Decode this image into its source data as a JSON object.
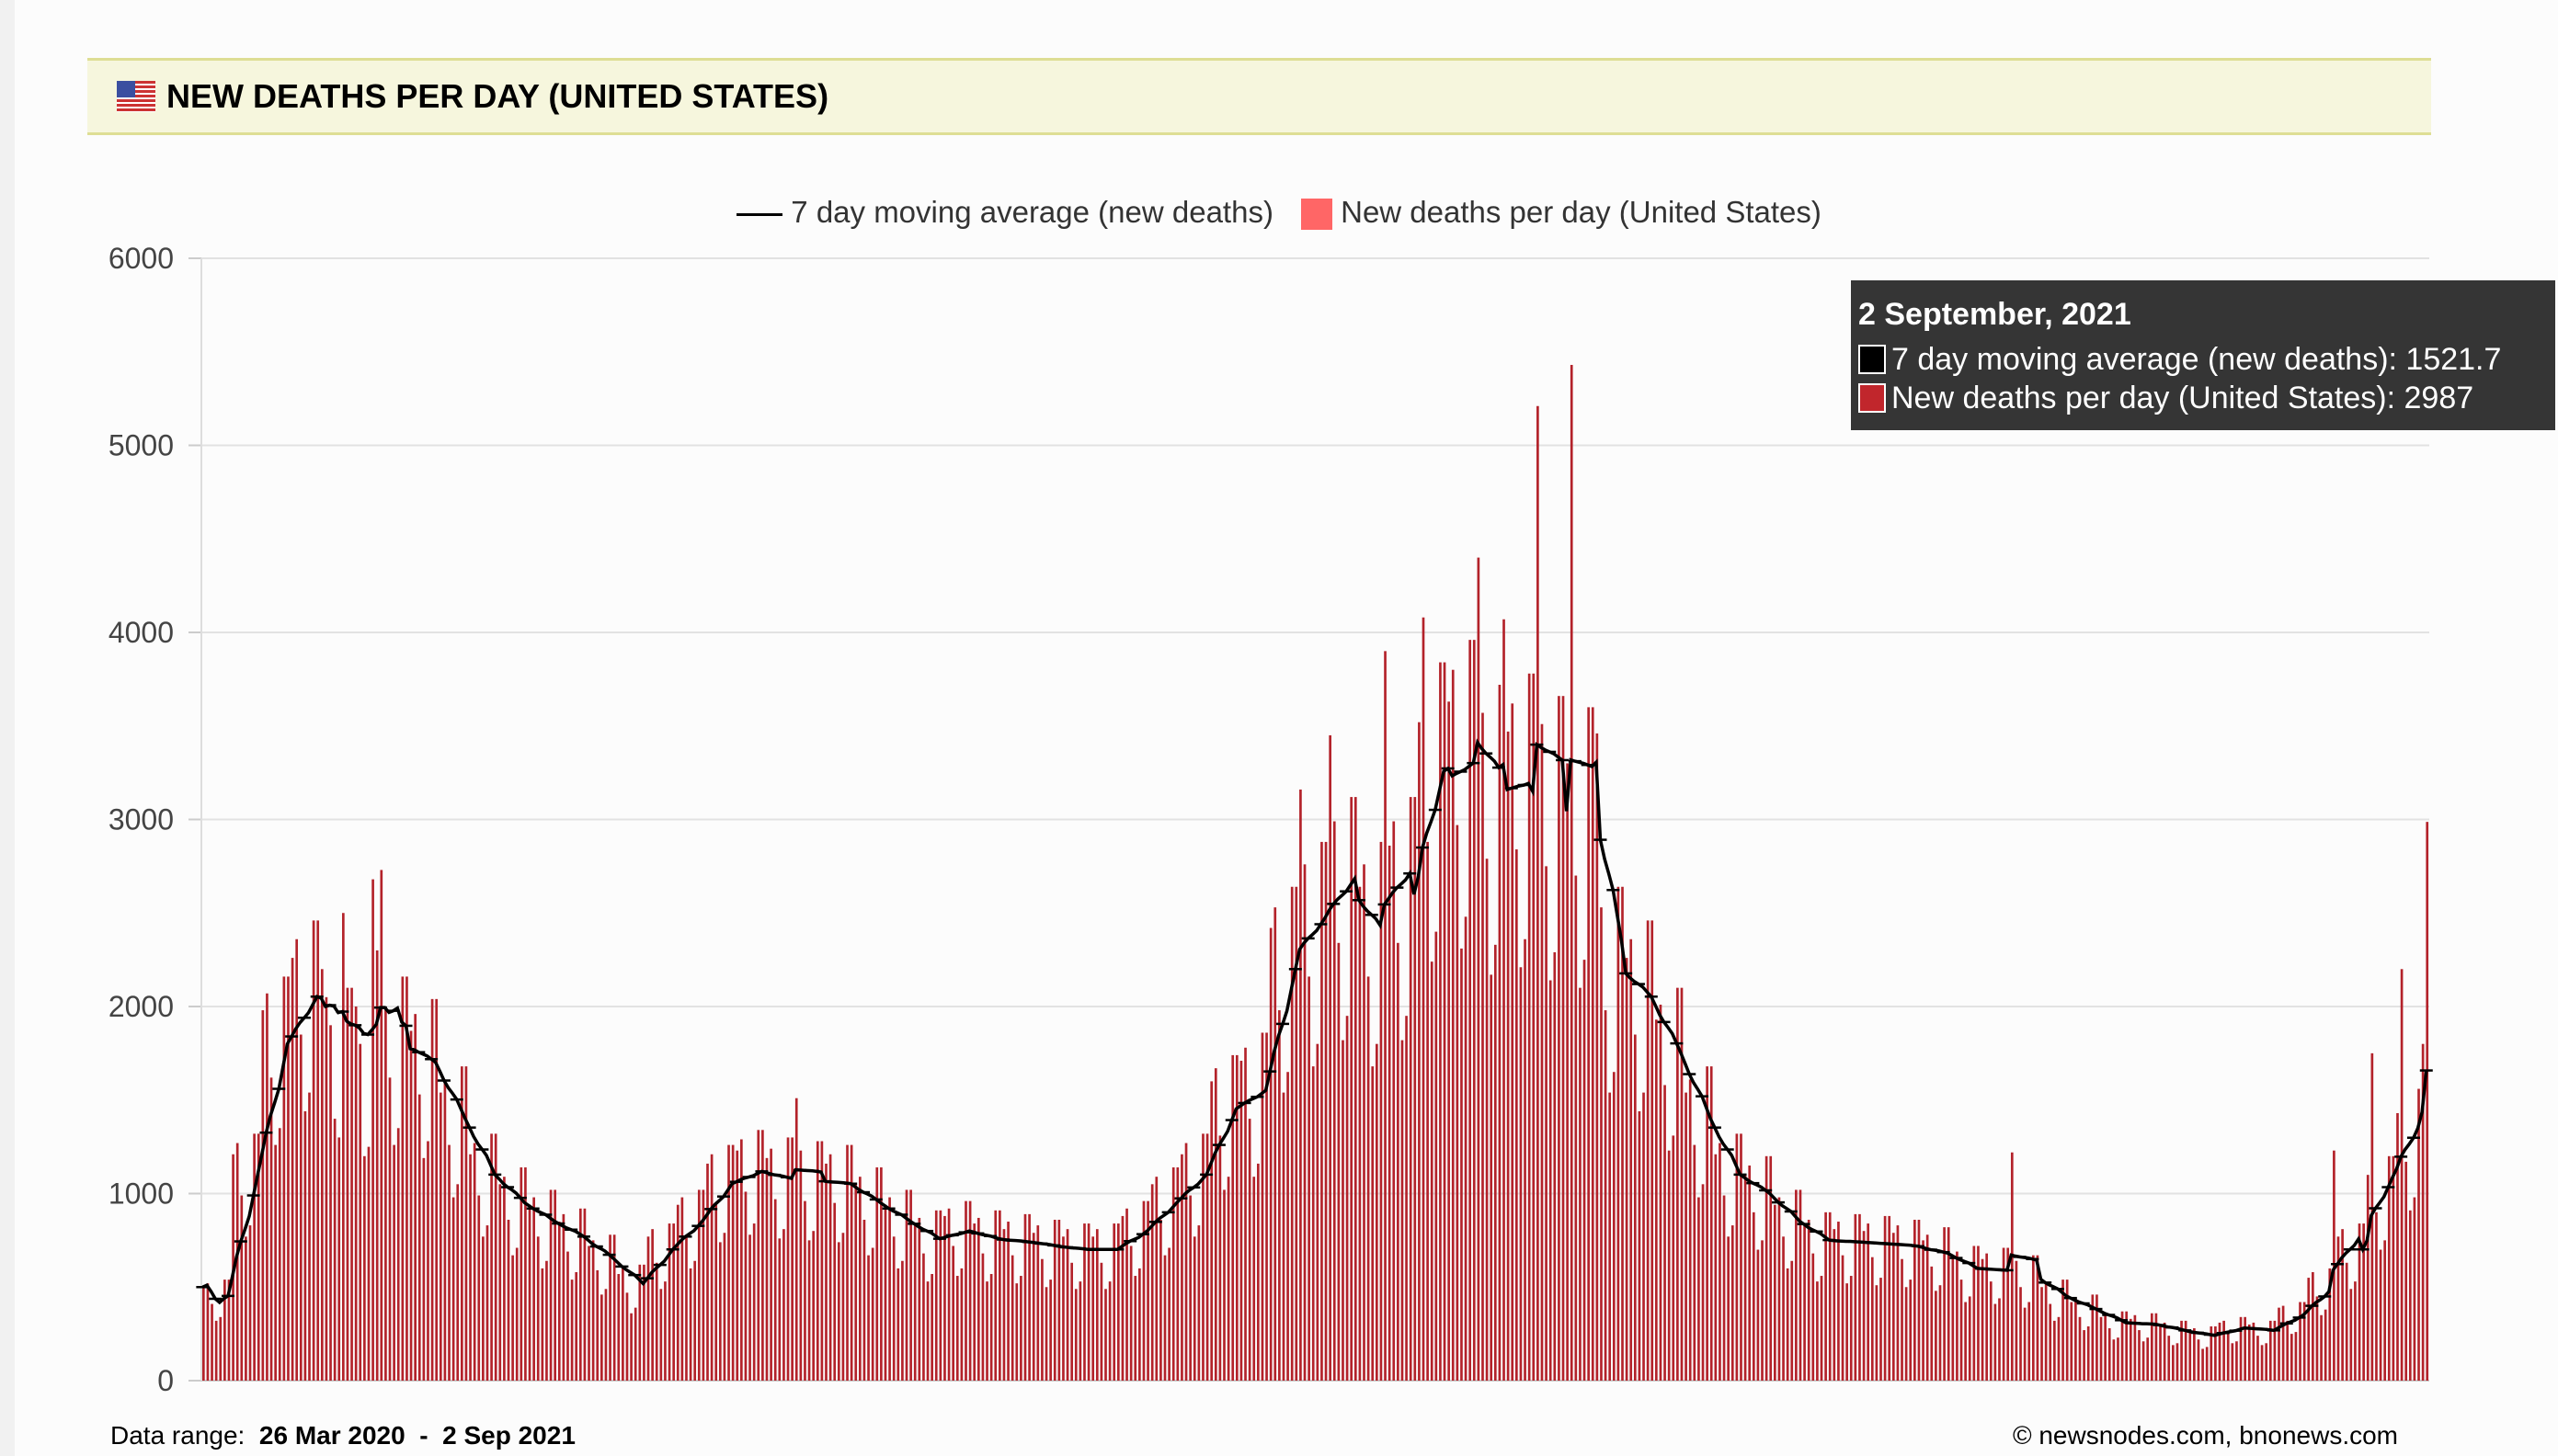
{
  "header": {
    "title": "NEW DEATHS PER DAY (UNITED STATES)",
    "flag_icon": "us-flag-icon"
  },
  "legend": {
    "ma_label": "7 day moving average (new deaths)",
    "daily_label": "New deaths per day (United States)"
  },
  "tooltip": {
    "date": "2 September, 2021",
    "ma_text": "7 day moving average (new deaths): 1521.7",
    "daily_text": "New deaths per day (United States): 2987"
  },
  "footer": {
    "range_label": "Data range:",
    "range_value": "26 Mar 2020  -  2 Sep 2021",
    "credit": "©  newsnodes.com, bnonews.com"
  },
  "chart_data": {
    "type": "bar+line",
    "title": "NEW DEATHS PER DAY (UNITED STATES)",
    "x_start": "26 Mar 2020",
    "x_end": "2 Sep 2021",
    "ylim": [
      0,
      6000
    ],
    "yticks": [
      "0",
      "1000",
      "2000",
      "3000",
      "4000",
      "5000",
      "6000"
    ],
    "grid": true,
    "legend_position": "top",
    "colors": {
      "bars": "#b3222a",
      "legend_bar": "#ff6666",
      "line": "#000000"
    },
    "series": [
      {
        "name": "New deaths per day (United States)",
        "type": "bar",
        "values": [
          500,
          520,
          410,
          320,
          340,
          540,
          540,
          1210,
          1270,
          990,
          770,
          830,
          1320,
          1320,
          1980,
          2070,
          1620,
          1260,
          1350,
          2160,
          2160,
          2260,
          2360,
          1850,
          1440,
          1540,
          2460,
          2460,
          2200,
          2050,
          1900,
          1400,
          1300,
          2500,
          2100,
          2100,
          2000,
          1800,
          1200,
          1250,
          2680,
          2300,
          2730,
          2000,
          1620,
          1260,
          1350,
          2160,
          2160,
          1870,
          1960,
          1530,
          1190,
          1280,
          2040,
          2040,
          1540,
          1610,
          1260,
          980,
          1050,
          1680,
          1680,
          1210,
          1270,
          990,
          770,
          830,
          1320,
          1320,
          1050,
          1090,
          860,
          670,
          710,
          1140,
          1140,
          940,
          980,
          770,
          600,
          640,
          1020,
          1020,
          850,
          890,
          690,
          540,
          580,
          920,
          920,
          720,
          750,
          590,
          460,
          490,
          780,
          780,
          570,
          600,
          470,
          360,
          390,
          620,
          620,
          770,
          810,
          630,
          490,
          530,
          840,
          840,
          940,
          980,
          770,
          600,
          640,
          1020,
          1020,
          1160,
          1210,
          950,
          740,
          790,
          1260,
          1260,
          1230,
          1290,
          1010,
          780,
          840,
          1340,
          1340,
          1190,
          1240,
          970,
          760,
          810,
          1300,
          1300,
          1510,
          1230,
          960,
          750,
          800,
          1280,
          1280,
          1160,
          1210,
          950,
          740,
          790,
          1260,
          1260,
          1050,
          1090,
          860,
          670,
          710,
          1140,
          1140,
          940,
          980,
          770,
          600,
          640,
          1020,
          1020,
          840,
          870,
          680,
          530,
          570,
          910,
          910,
          880,
          920,
          720,
          560,
          600,
          960,
          960,
          840,
          870,
          680,
          530,
          570,
          910,
          910,
          810,
          850,
          670,
          520,
          560,
          890,
          890,
          790,
          830,
          650,
          500,
          540,
          860,
          860,
          770,
          810,
          630,
          490,
          530,
          840,
          840,
          770,
          810,
          630,
          490,
          530,
          840,
          840,
          880,
          920,
          720,
          560,
          600,
          960,
          960,
          1050,
          1090,
          860,
          670,
          710,
          1140,
          1140,
          1210,
          1270,
          990,
          770,
          830,
          1320,
          1320,
          1600,
          1670,
          1310,
          1020,
          1090,
          1740,
          1740,
          1710,
          1780,
          1400,
          1090,
          1160,
          1860,
          1860,
          2420,
          2530,
          1980,
          1540,
          1650,
          2640,
          2640,
          3160,
          2760,
          2160,
          1680,
          1800,
          2880,
          2880,
          3450,
          2990,
          2340,
          1820,
          1950,
          3120,
          3120,
          2640,
          2760,
          2160,
          1680,
          1800,
          2880,
          3900,
          2860,
          2990,
          2340,
          1820,
          1950,
          3120,
          3120,
          3520,
          4080,
          2880,
          2240,
          2400,
          3840,
          3840,
          3630,
          3800,
          2970,
          2310,
          2480,
          3960,
          3960,
          4400,
          3570,
          2790,
          2170,
          2330,
          3720,
          4070,
          3470,
          3620,
          2840,
          2210,
          2360,
          3780,
          3780,
          5210,
          3510,
          2750,
          2140,
          2290,
          3660,
          3660,
          3300,
          5430,
          2700,
          2100,
          2250,
          3600,
          3600,
          3460,
          2530,
          1980,
          1540,
          1650,
          2640,
          2640,
          2260,
          2360,
          1850,
          1440,
          1540,
          2460,
          2460,
          1930,
          2010,
          1580,
          1230,
          1310,
          2100,
          2100,
          1540,
          1610,
          1260,
          980,
          1050,
          1680,
          1680,
          1210,
          1270,
          990,
          770,
          830,
          1320,
          1320,
          1100,
          1150,
          900,
          700,
          750,
          1200,
          1200,
          940,
          980,
          770,
          600,
          640,
          1020,
          1020,
          830,
          860,
          680,
          530,
          560,
          900,
          900,
          810,
          850,
          670,
          520,
          560,
          890,
          890,
          800,
          840,
          660,
          510,
          550,
          880,
          880,
          790,
          830,
          650,
          500,
          540,
          860,
          860,
          750,
          780,
          610,
          480,
          510,
          820,
          820,
          660,
          690,
          540,
          420,
          450,
          720,
          720,
          650,
          680,
          530,
          410,
          440,
          710,
          710,
          1220,
          640,
          500,
          390,
          420,
          670,
          670,
          500,
          520,
          410,
          320,
          340,
          540,
          540,
          420,
          440,
          340,
          270,
          290,
          460,
          460,
          340,
          360,
          280,
          220,
          230,
          370,
          370,
          330,
          350,
          270,
          210,
          230,
          360,
          360,
          300,
          310,
          240,
          190,
          200,
          320,
          320,
          260,
          280,
          220,
          170,
          180,
          290,
          290,
          310,
          320,
          250,
          200,
          210,
          340,
          340,
          300,
          310,
          240,
          190,
          200,
          320,
          320,
          390,
          400,
          320,
          250,
          260,
          420,
          420,
          550,
          580,
          450,
          350,
          380,
          600,
          1230,
          770,
          810,
          630,
          490,
          530,
          840,
          840,
          1100,
          1750,
          900,
          700,
          750,
          1200,
          1200,
          1430,
          2200,
          1170,
          910,
          980,
          1560,
          1800,
          2987
        ]
      },
      {
        "name": "7 day moving average (new deaths)",
        "type": "line",
        "last_value": 1521.7
      }
    ]
  }
}
